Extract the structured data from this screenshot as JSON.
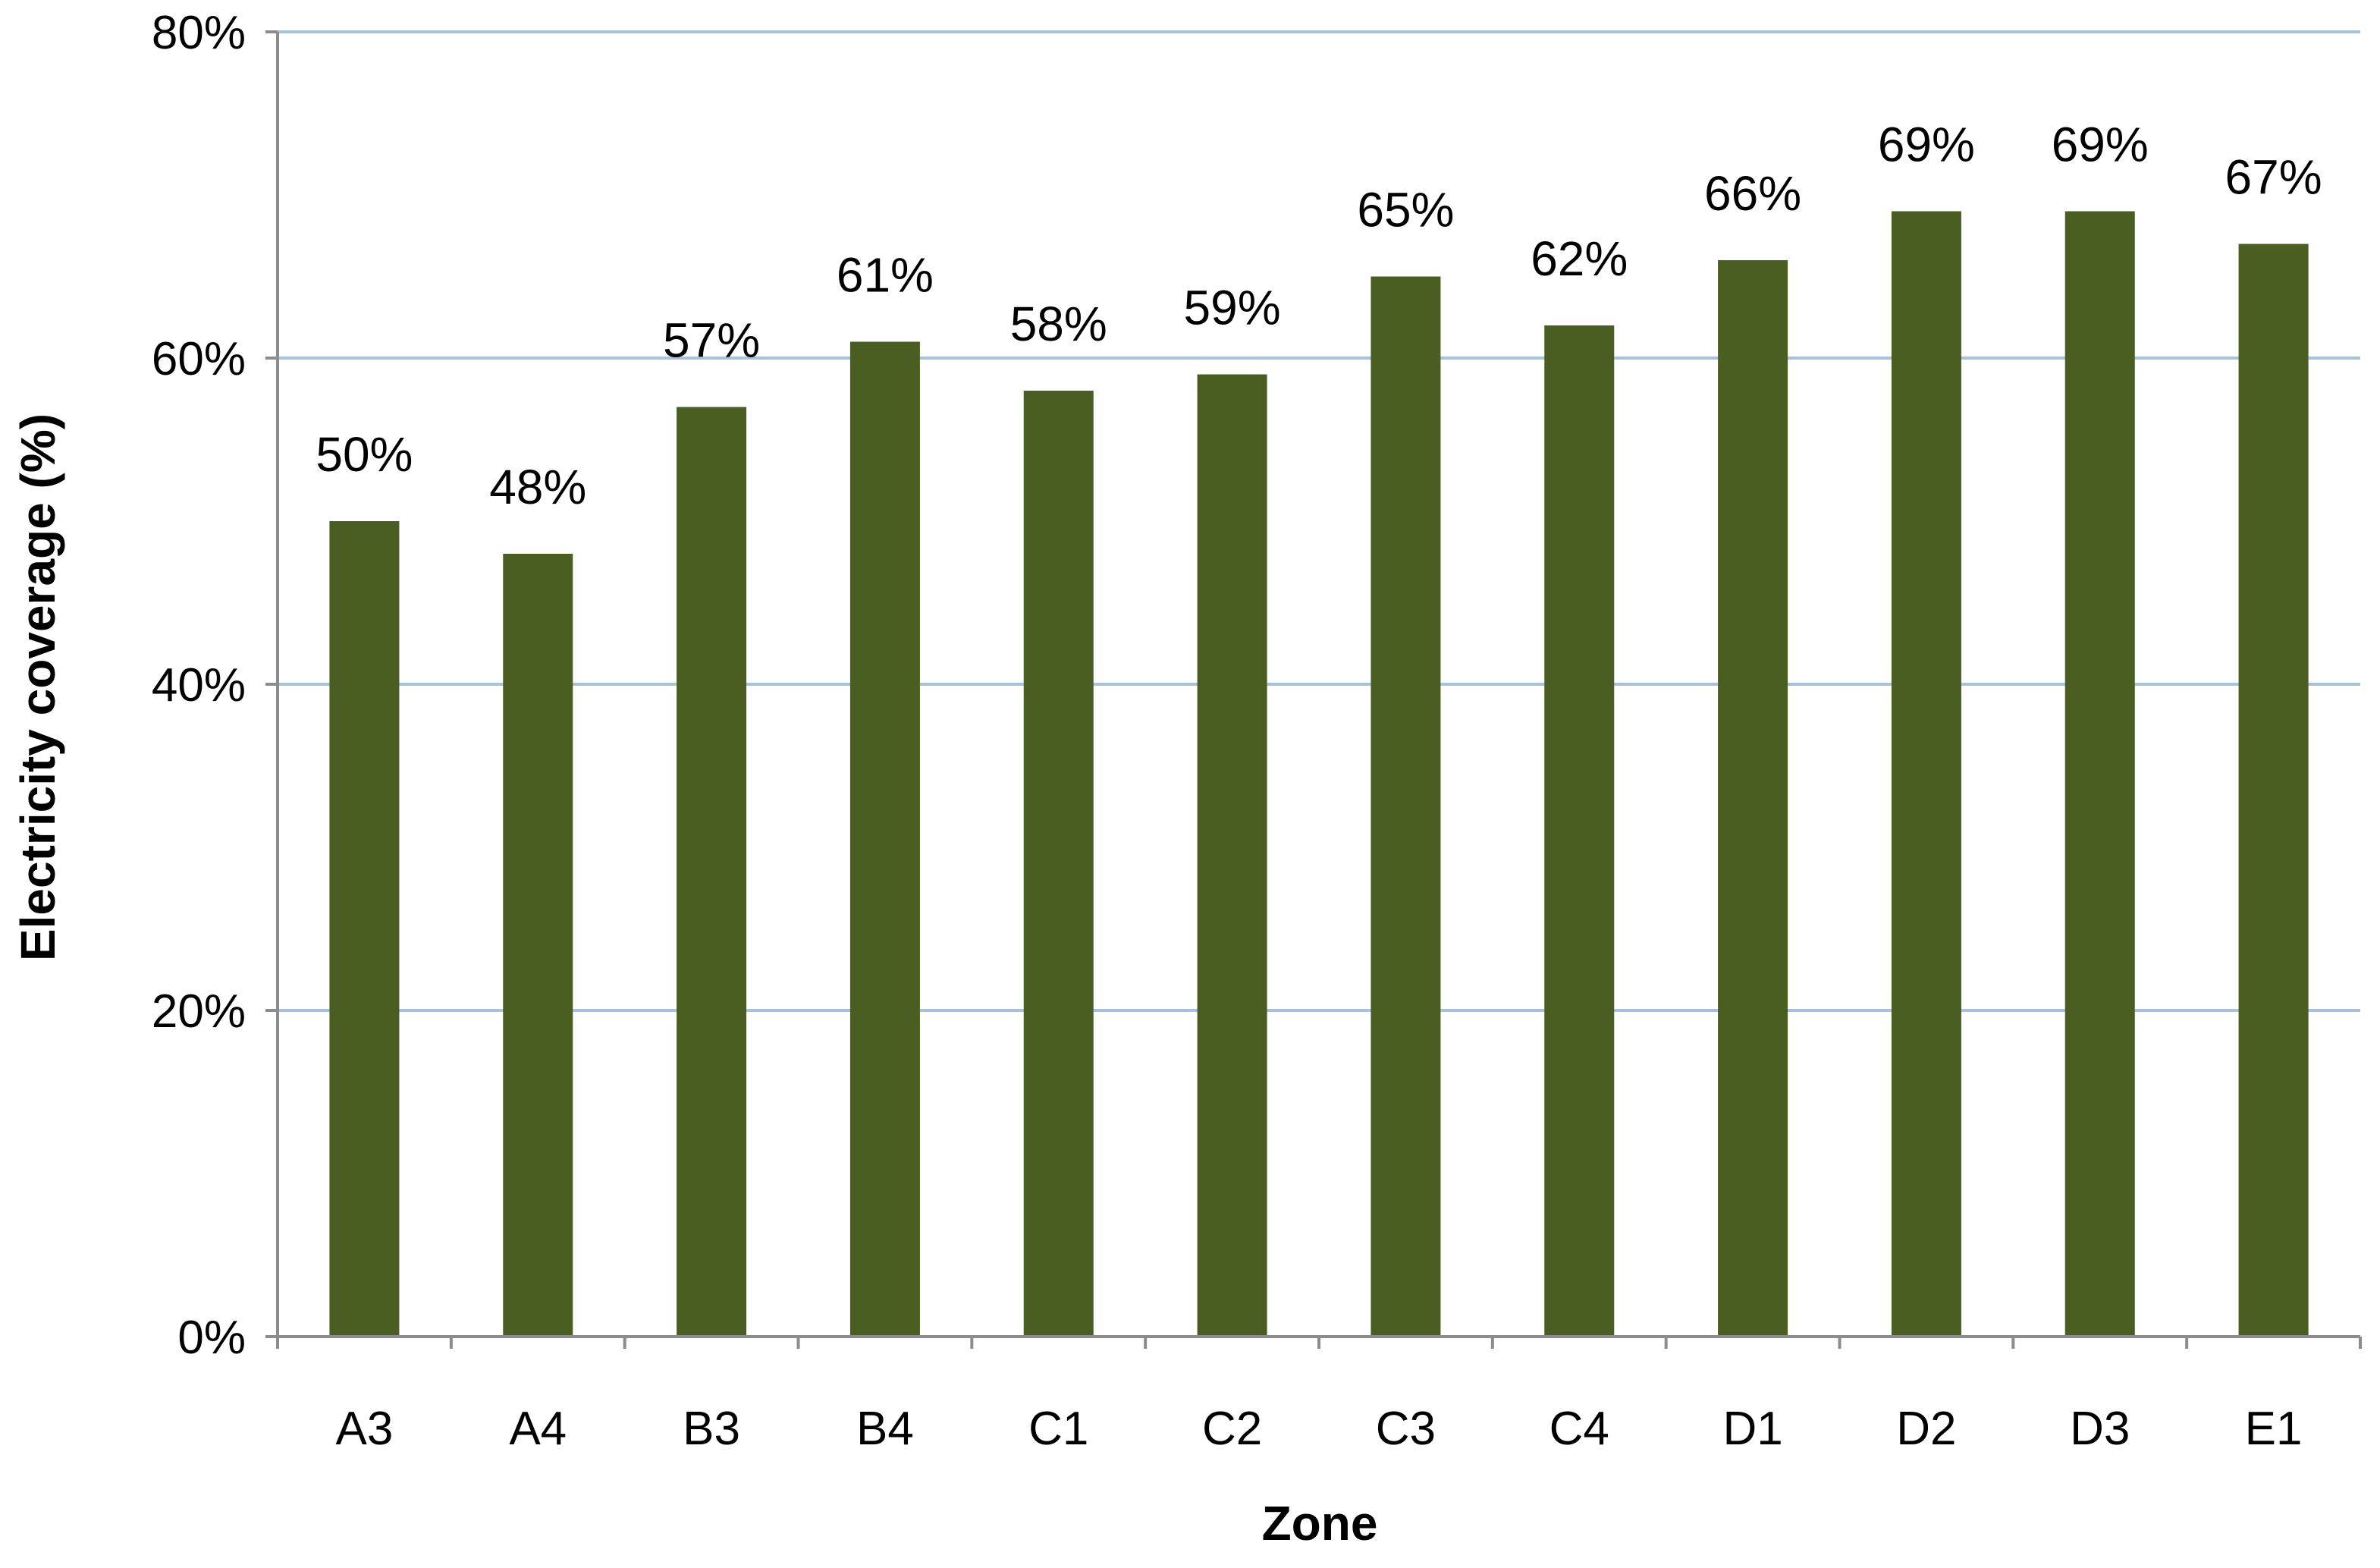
{
  "chart_data": {
    "type": "bar",
    "title": "",
    "xlabel": "Zone",
    "ylabel": "Electricity coverage (%)",
    "categories": [
      "A3",
      "A4",
      "B3",
      "B4",
      "C1",
      "C2",
      "C3",
      "C4",
      "D1",
      "D2",
      "D3",
      "E1"
    ],
    "values": [
      50,
      48,
      57,
      61,
      58,
      59,
      65,
      62,
      66,
      69,
      69,
      67
    ],
    "data_labels": [
      "50%",
      "48%",
      "57%",
      "61%",
      "58%",
      "59%",
      "65%",
      "62%",
      "66%",
      "69%",
      "69%",
      "67%"
    ],
    "ylim": [
      0,
      80
    ],
    "yticks": [
      0,
      20,
      40,
      60,
      80
    ],
    "ytick_labels": [
      "0%",
      "20%",
      "40%",
      "60%",
      "80%"
    ],
    "grid": true,
    "legend": "none",
    "colors": {
      "bar": "#4a5e21",
      "grid": "#a8c2dd",
      "axis": "#8c8c8c"
    }
  }
}
